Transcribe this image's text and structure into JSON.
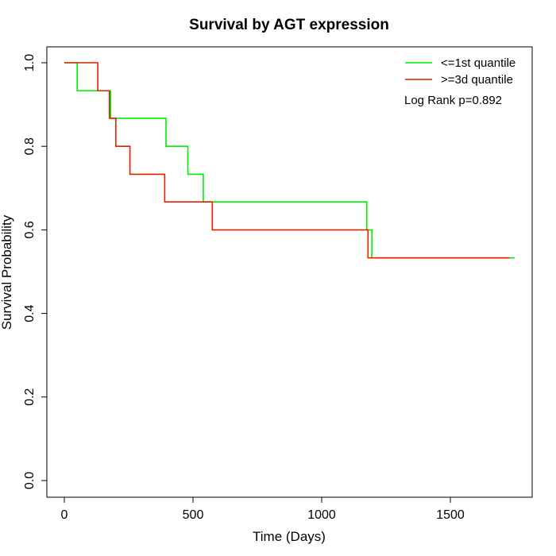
{
  "chart_data": {
    "type": "line",
    "title": "Survival by AGT expression",
    "xlabel": "Time (Days)",
    "ylabel": "Survival Probability",
    "xlim": [
      0,
      1750
    ],
    "ylim": [
      0,
      1
    ],
    "x_ticks": [
      0,
      500,
      1000,
      1500
    ],
    "y_ticks": [
      0.0,
      0.2,
      0.4,
      0.6,
      0.8,
      1.0
    ],
    "x_tick_labels": [
      "0",
      "500",
      "1000",
      "1500"
    ],
    "y_tick_labels": [
      "0.0",
      "0.2",
      "0.4",
      "0.6",
      "0.8",
      "1.0"
    ],
    "grid": false,
    "legend_position": "top-right",
    "annotation": "Log Rank p=0.892",
    "series": [
      {
        "name": "<=1st quantile",
        "color": "#00ee00",
        "step": true,
        "x": [
          0,
          50,
          180,
          395,
          480,
          540,
          1175,
          1195,
          1750
        ],
        "y": [
          1.0,
          0.933,
          0.867,
          0.8,
          0.733,
          0.667,
          0.6,
          0.533,
          0.533
        ]
      },
      {
        "name": ">=3d quantile",
        "color": "#dd2200",
        "step": true,
        "x": [
          0,
          130,
          175,
          200,
          255,
          390,
          575,
          1180,
          1730
        ],
        "y": [
          1.0,
          0.933,
          0.867,
          0.8,
          0.733,
          0.667,
          0.6,
          0.533,
          0.533
        ]
      }
    ]
  }
}
